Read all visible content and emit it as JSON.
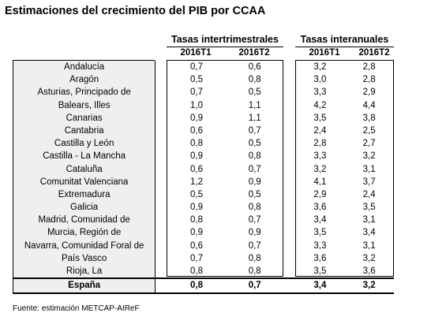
{
  "title": "Estimaciones del crecimiento del PIB por CCAA",
  "groups": {
    "intertrimestral": "Tasas intertrimestrales",
    "interanual": "Tasas interanuales"
  },
  "columns": [
    "2016T1",
    "2016T2",
    "2016T1",
    "2016T2"
  ],
  "rows": [
    {
      "name": "Andalucía",
      "v": [
        "0,7",
        "0,6",
        "3,2",
        "2,8"
      ]
    },
    {
      "name": "Aragón",
      "v": [
        "0,5",
        "0,8",
        "3,0",
        "2,8"
      ]
    },
    {
      "name": "Asturias, Principado de",
      "v": [
        "0,7",
        "0,5",
        "3,3",
        "2,9"
      ]
    },
    {
      "name": "Balears, Illes",
      "v": [
        "1,0",
        "1,1",
        "4,2",
        "4,4"
      ]
    },
    {
      "name": "Canarias",
      "v": [
        "0,9",
        "1,1",
        "3,5",
        "3,8"
      ]
    },
    {
      "name": "Cantabria",
      "v": [
        "0,6",
        "0,7",
        "2,4",
        "2,5"
      ]
    },
    {
      "name": "Castilla y León",
      "v": [
        "0,8",
        "0,5",
        "2,8",
        "2,7"
      ]
    },
    {
      "name": "Castilla - La Mancha",
      "v": [
        "0,9",
        "0,8",
        "3,3",
        "3,2"
      ]
    },
    {
      "name": "Cataluña",
      "v": [
        "0,6",
        "0,7",
        "3,2",
        "3,1"
      ]
    },
    {
      "name": "Comunitat Valenciana",
      "v": [
        "1,2",
        "0,9",
        "4,1",
        "3,7"
      ]
    },
    {
      "name": "Extremadura",
      "v": [
        "0,5",
        "0,5",
        "2,9",
        "2,4"
      ]
    },
    {
      "name": "Galicia",
      "v": [
        "0,9",
        "0,8",
        "3,6",
        "3,5"
      ]
    },
    {
      "name": "Madrid, Comunidad de",
      "v": [
        "0,8",
        "0,7",
        "3,4",
        "3,1"
      ]
    },
    {
      "name": "Murcia, Región de",
      "v": [
        "0,9",
        "0,9",
        "3,5",
        "3,4"
      ]
    },
    {
      "name": "Navarra, Comunidad Foral de",
      "v": [
        "0,6",
        "0,7",
        "3,3",
        "3,1"
      ]
    },
    {
      "name": "País Vasco",
      "v": [
        "0,7",
        "0,8",
        "3,6",
        "3,2"
      ]
    },
    {
      "name": "Rioja, La",
      "v": [
        "0,8",
        "0,8",
        "3,5",
        "3,6"
      ]
    }
  ],
  "total": {
    "name": "España",
    "v": [
      "0,8",
      "0,7",
      "3,4",
      "3,2"
    ]
  },
  "footer": "Fuente: estimación METCAP-AIReF"
}
